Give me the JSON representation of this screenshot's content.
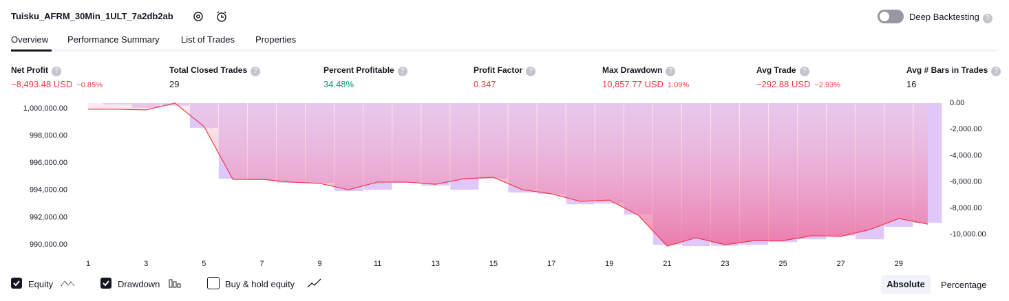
{
  "header": {
    "title": "Tuisku_AFRM_30Min_1ULT_7a2db2ab",
    "toggle_label": "Deep Backtesting"
  },
  "tabs": [
    "Overview",
    "Performance Summary",
    "List of Trades",
    "Properties"
  ],
  "metrics": [
    {
      "label": "Net Profit",
      "value": "−8,493.48 USD",
      "pct": "−0.85%"
    },
    {
      "label": "Total Closed Trades",
      "value": "29"
    },
    {
      "label": "Percent Profitable",
      "value": "34.48%"
    },
    {
      "label": "Profit Factor",
      "value": "0.347"
    },
    {
      "label": "Max Drawdown",
      "value": "10,857.77 USD",
      "pct": "1.09%"
    },
    {
      "label": "Avg Trade",
      "value": "−292.88 USD",
      "pct": "−2.93%"
    },
    {
      "label": "Avg # Bars in Trades",
      "value": "16"
    }
  ],
  "chart_data": {
    "type": "line",
    "x": [
      1,
      2,
      3,
      4,
      5,
      6,
      7,
      8,
      9,
      10,
      11,
      12,
      13,
      14,
      15,
      16,
      17,
      18,
      19,
      20,
      21,
      22,
      23,
      24,
      25,
      26,
      27,
      28,
      29,
      30
    ],
    "xlim": [
      0.5,
      30.5
    ],
    "xticks": [
      1,
      3,
      5,
      7,
      9,
      11,
      13,
      15,
      17,
      19,
      21,
      23,
      25,
      27,
      29
    ],
    "ylim": [
      989500,
      1000400
    ],
    "yticks": [
      {
        "value": 990000,
        "label": "990,000.00"
      },
      {
        "value": 992000,
        "label": "992,000.00"
      },
      {
        "value": 994000,
        "label": "994,000.00"
      },
      {
        "value": 996000,
        "label": "996,000.00"
      },
      {
        "value": 998000,
        "label": "998,000.00"
      },
      {
        "value": 1000000,
        "label": "1,000,000.00"
      }
    ],
    "y2lim": [
      -11300,
      0
    ],
    "y2ticks": [
      {
        "value": 0,
        "label": "0.00"
      },
      {
        "value": -2000,
        "label": "-2,000.00"
      },
      {
        "value": -4000,
        "label": "-4,000.00"
      },
      {
        "value": -6000,
        "label": "-6,000.00"
      },
      {
        "value": -8000,
        "label": "-8,000.00"
      },
      {
        "value": -10000,
        "label": "-10,000.00"
      }
    ],
    "series": [
      {
        "name": "Equity",
        "color": "#f23645",
        "values": [
          999950,
          999950,
          999900,
          1000400,
          998690,
          994800,
          994800,
          994600,
          994500,
          994040,
          994600,
          994600,
          994440,
          994850,
          994950,
          994040,
          993740,
          993180,
          993280,
          992170,
          989900,
          990510,
          990000,
          990300,
          990300,
          990660,
          990610,
          991110,
          991920,
          991510
        ]
      },
      {
        "name": "Drawdown",
        "color": "#c9a3f5",
        "axis": "y2",
        "values": [
          0,
          -100,
          -370,
          -200,
          -1880,
          -5760,
          -5860,
          -6070,
          -6070,
          -6700,
          -6600,
          -6070,
          -6280,
          -6600,
          -5760,
          -6810,
          -6910,
          -7700,
          -7650,
          -8480,
          -10790,
          -10890,
          -10858,
          -10790,
          -10580,
          -10370,
          -10100,
          -10370,
          -9420,
          -9110
        ]
      }
    ]
  },
  "legend": [
    "Equity",
    "Drawdown",
    "Buy & hold equity"
  ],
  "modes": [
    "Absolute",
    "Percentage"
  ]
}
